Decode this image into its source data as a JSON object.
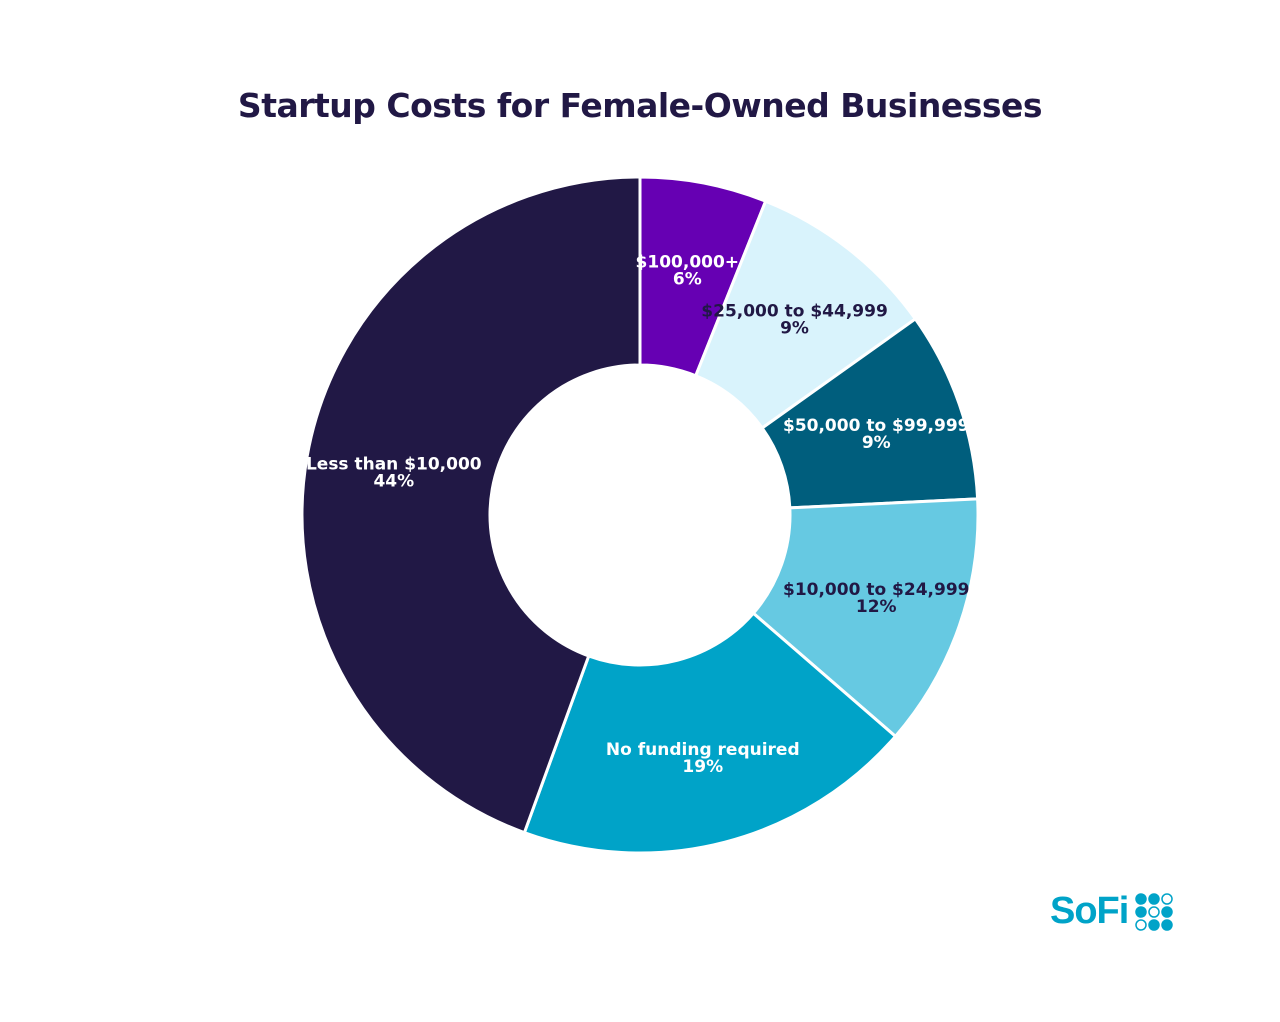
{
  "chart_data": {
    "type": "pie",
    "donut": true,
    "title": "Startup Costs for Female-Owned Businesses",
    "slices": [
      {
        "label": "$100,000+",
        "value": 6,
        "value_label": "6%",
        "color": "#6600b3",
        "text_color": "#ffffff"
      },
      {
        "label": "$25,000 to $44,999",
        "value": 9,
        "value_label": "9%",
        "color": "#d9f3fc",
        "text_color": "#211845"
      },
      {
        "label": "$50,000 to $99,999",
        "value": 9,
        "value_label": "9%",
        "color": "#005e7d",
        "text_color": "#ffffff"
      },
      {
        "label": "$10,000 to $24,999",
        "value": 12,
        "value_label": "12%",
        "color": "#66c9e2",
        "text_color": "#211845"
      },
      {
        "label": "No funding required",
        "value": 19,
        "value_label": "19%",
        "color": "#00a3c8",
        "text_color": "#ffffff"
      },
      {
        "label": "Less than $10,000",
        "value": 44,
        "value_label": "44%",
        "color": "#211845",
        "text_color": "#ffffff"
      }
    ],
    "start": "top",
    "direction": "clockwise"
  },
  "logo": {
    "text": "SoFi",
    "color": "#00a3c8"
  }
}
